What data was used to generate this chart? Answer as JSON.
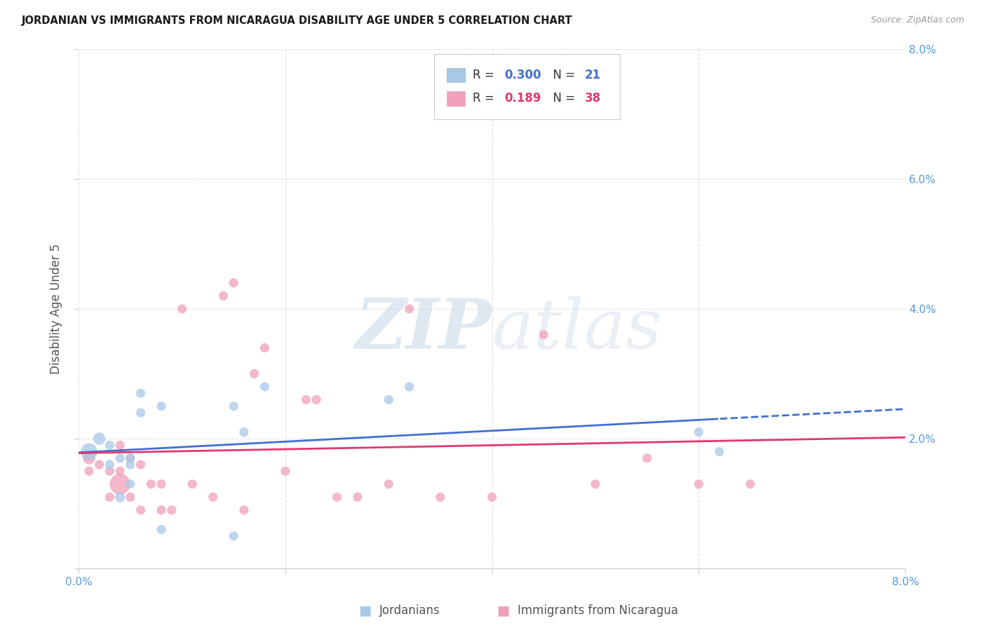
{
  "title": "JORDANIAN VS IMMIGRANTS FROM NICARAGUA DISABILITY AGE UNDER 5 CORRELATION CHART",
  "source": "Source: ZipAtlas.com",
  "ylabel": "Disability Age Under 5",
  "xlabel_jordanians": "Jordanians",
  "xlabel_nicaragua": "Immigrants from Nicaragua",
  "xlim": [
    0.0,
    0.08
  ],
  "ylim": [
    0.0,
    0.08
  ],
  "xticks_shown": [
    0.0,
    0.08
  ],
  "xtick_labels_shown": [
    "0.0%",
    "8.0%"
  ],
  "yticks_grid": [
    0.0,
    0.02,
    0.04,
    0.06,
    0.08
  ],
  "ytick_labels_right": [
    "",
    "2.0%",
    "4.0%",
    "6.0%",
    "8.0%"
  ],
  "color_jordanian": "#a8c8e8",
  "color_nicaragua": "#f0a0b8",
  "color_line_jordanian": "#4070d0",
  "color_line_nicaragua": "#e03870",
  "color_axis_right": "#5599dd",
  "watermark_zip": "ZIP",
  "watermark_atlas": "atlas",
  "jordanian_x": [
    0.001,
    0.002,
    0.003,
    0.003,
    0.004,
    0.004,
    0.005,
    0.005,
    0.005,
    0.006,
    0.006,
    0.008,
    0.008,
    0.015,
    0.015,
    0.016,
    0.018,
    0.03,
    0.032,
    0.06,
    0.062
  ],
  "jordanian_y": [
    0.018,
    0.02,
    0.016,
    0.019,
    0.011,
    0.017,
    0.017,
    0.016,
    0.013,
    0.024,
    0.027,
    0.025,
    0.006,
    0.005,
    0.025,
    0.021,
    0.028,
    0.026,
    0.028,
    0.021,
    0.018
  ],
  "jordanian_size": [
    300,
    160,
    90,
    90,
    110,
    90,
    90,
    90,
    90,
    90,
    90,
    90,
    90,
    90,
    90,
    90,
    90,
    90,
    90,
    90,
    90
  ],
  "nicaragua_x": [
    0.001,
    0.001,
    0.002,
    0.003,
    0.003,
    0.004,
    0.004,
    0.004,
    0.005,
    0.005,
    0.006,
    0.006,
    0.007,
    0.008,
    0.008,
    0.009,
    0.01,
    0.011,
    0.013,
    0.014,
    0.015,
    0.016,
    0.017,
    0.018,
    0.02,
    0.022,
    0.023,
    0.025,
    0.027,
    0.03,
    0.032,
    0.035,
    0.04,
    0.045,
    0.05,
    0.055,
    0.06,
    0.065
  ],
  "nicaragua_y": [
    0.015,
    0.017,
    0.016,
    0.011,
    0.015,
    0.013,
    0.015,
    0.019,
    0.017,
    0.011,
    0.016,
    0.009,
    0.013,
    0.009,
    0.013,
    0.009,
    0.04,
    0.013,
    0.011,
    0.042,
    0.044,
    0.009,
    0.03,
    0.034,
    0.015,
    0.026,
    0.026,
    0.011,
    0.011,
    0.013,
    0.04,
    0.011,
    0.011,
    0.036,
    0.013,
    0.017,
    0.013,
    0.013
  ],
  "nicaragua_size": [
    90,
    160,
    90,
    90,
    90,
    450,
    90,
    90,
    90,
    90,
    90,
    90,
    90,
    90,
    90,
    90,
    90,
    90,
    90,
    90,
    90,
    90,
    90,
    90,
    90,
    90,
    90,
    90,
    90,
    90,
    90,
    90,
    90,
    90,
    90,
    90,
    90,
    90
  ],
  "background_color": "#ffffff",
  "grid_color": "#e0e0e0"
}
